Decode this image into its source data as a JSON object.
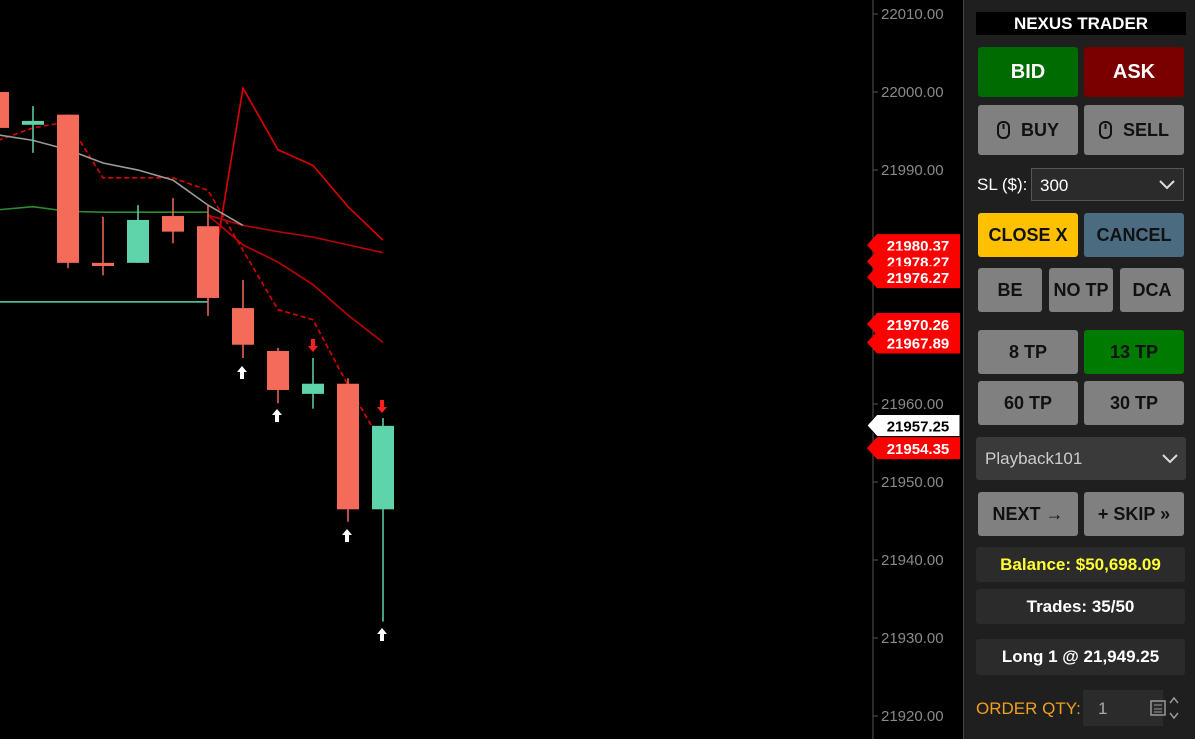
{
  "chart_data": {
    "type": "candlestick",
    "open": [
      22000.0,
      21995.8,
      21997.1,
      21978.1,
      21978.1,
      21984.1,
      21982.8,
      21972.3,
      21966.8,
      21961.3,
      21962.6,
      21946.5
    ],
    "high": [
      22000.0,
      21998.2,
      21997.1,
      21984.0,
      21985.5,
      21986.4,
      21985.5,
      21975.9,
      21967.2,
      21965.9,
      21963.3,
      21958.2
    ],
    "low": [
      21995.4,
      21992.2,
      21977.4,
      21976.5,
      21978.1,
      21980.6,
      21971.3,
      21965.9,
      21960.1,
      21959.4,
      21944.9,
      21932.1
    ],
    "close": [
      21995.4,
      21996.3,
      21978.1,
      21977.7,
      21983.6,
      21982.1,
      21973.6,
      21967.6,
      21961.8,
      21962.6,
      21946.5,
      21957.2
    ],
    "up_color": "#5fd4ab",
    "down_color": "#f46b59",
    "series": [
      {
        "color": "#e00000",
        "dashed": false,
        "values": [
          null,
          null,
          null,
          null,
          null,
          null,
          21973.3,
          22000.5,
          21992.6,
          21990.6,
          21985.3,
          21981.0
        ]
      },
      {
        "color": "#e00000",
        "dashed": true,
        "values": [
          21993.8,
          21995.4,
          21996.2,
          21989.0,
          21989.0,
          21989.0,
          21987.4,
          21979.7,
          21972.1,
          21970.8,
          21962.4,
          21954.7
        ]
      },
      {
        "color": "#c00000",
        "dashed": false,
        "values": [
          null,
          null,
          null,
          null,
          null,
          null,
          21984.2,
          21982.9,
          21982.1,
          21981.4,
          21980.4,
          21979.4
        ]
      },
      {
        "color": "#c00000",
        "dashed": false,
        "values": [
          null,
          null,
          null,
          null,
          null,
          null,
          21984.2,
          21980.4,
          21978.2,
          21975.3,
          21971.4,
          21967.9
        ]
      },
      {
        "color": "#9a9a9a",
        "dashed": false,
        "values": [
          21994.5,
          21993.8,
          21992.6,
          21990.9,
          21990.0,
          21988.7,
          21985.5,
          21982.9,
          null,
          null,
          null,
          null
        ]
      },
      {
        "color": "#2e8b2e",
        "dashed": false,
        "values": [
          21984.9,
          21985.3,
          21984.7,
          21984.6,
          21984.6,
          21984.6,
          21984.6,
          null,
          null,
          null,
          null,
          null
        ]
      }
    ],
    "hline": {
      "value": 21973.1,
      "color": "#5fd4ab"
    },
    "ylim": [
      21917.05,
      22011.8
    ],
    "yticks": [
      {
        "value": 22010,
        "label": "22010.00"
      },
      {
        "value": 22000,
        "label": "22000.00"
      },
      {
        "value": 21990,
        "label": "21990.00"
      },
      {
        "value": 21980,
        "label": "21980.00"
      },
      {
        "value": 21970,
        "label": "21970.00"
      },
      {
        "value": 21960,
        "label": "21960.00"
      },
      {
        "value": 21950,
        "label": "21950.00"
      },
      {
        "value": 21940,
        "label": "21940.00"
      },
      {
        "value": 21930,
        "label": "21930.00"
      },
      {
        "value": 21920,
        "label": "21920.00"
      }
    ],
    "price_labels": [
      {
        "value": 21980.37,
        "color": "#ff0000"
      },
      {
        "value": 21978.27,
        "color": "#ff0000"
      },
      {
        "value": 21976.27,
        "color": "#ff0000"
      },
      {
        "value": 21970.26,
        "color": "#ff0000"
      },
      {
        "value": 21967.89,
        "color": "#ff0000"
      },
      {
        "value": 21957.25,
        "color": "#ffffff"
      },
      {
        "value": 21954.35,
        "color": "#ff0000"
      }
    ]
  },
  "panel": {
    "title": "NEXUS TRADER",
    "bid": "BID",
    "ask": "ASK",
    "buy": "BUY",
    "sell": "SELL",
    "sl_label": "SL ($):",
    "sl_value": "300",
    "close": "CLOSE X",
    "cancel": "CANCEL",
    "be": "BE",
    "no_tp": "NO TP",
    "dca": "DCA",
    "tp": [
      "8 TP",
      "13 TP",
      "60 TP",
      "30 TP"
    ],
    "playback": "Playback101",
    "next": "NEXT →",
    "skip": "+ SKIP »",
    "balance": "Balance: $50,698.09",
    "trades": "Trades: 35/50",
    "position": "Long 1 @ 21,949.25",
    "qty_label": "ORDER QTY:",
    "qty": "1"
  }
}
